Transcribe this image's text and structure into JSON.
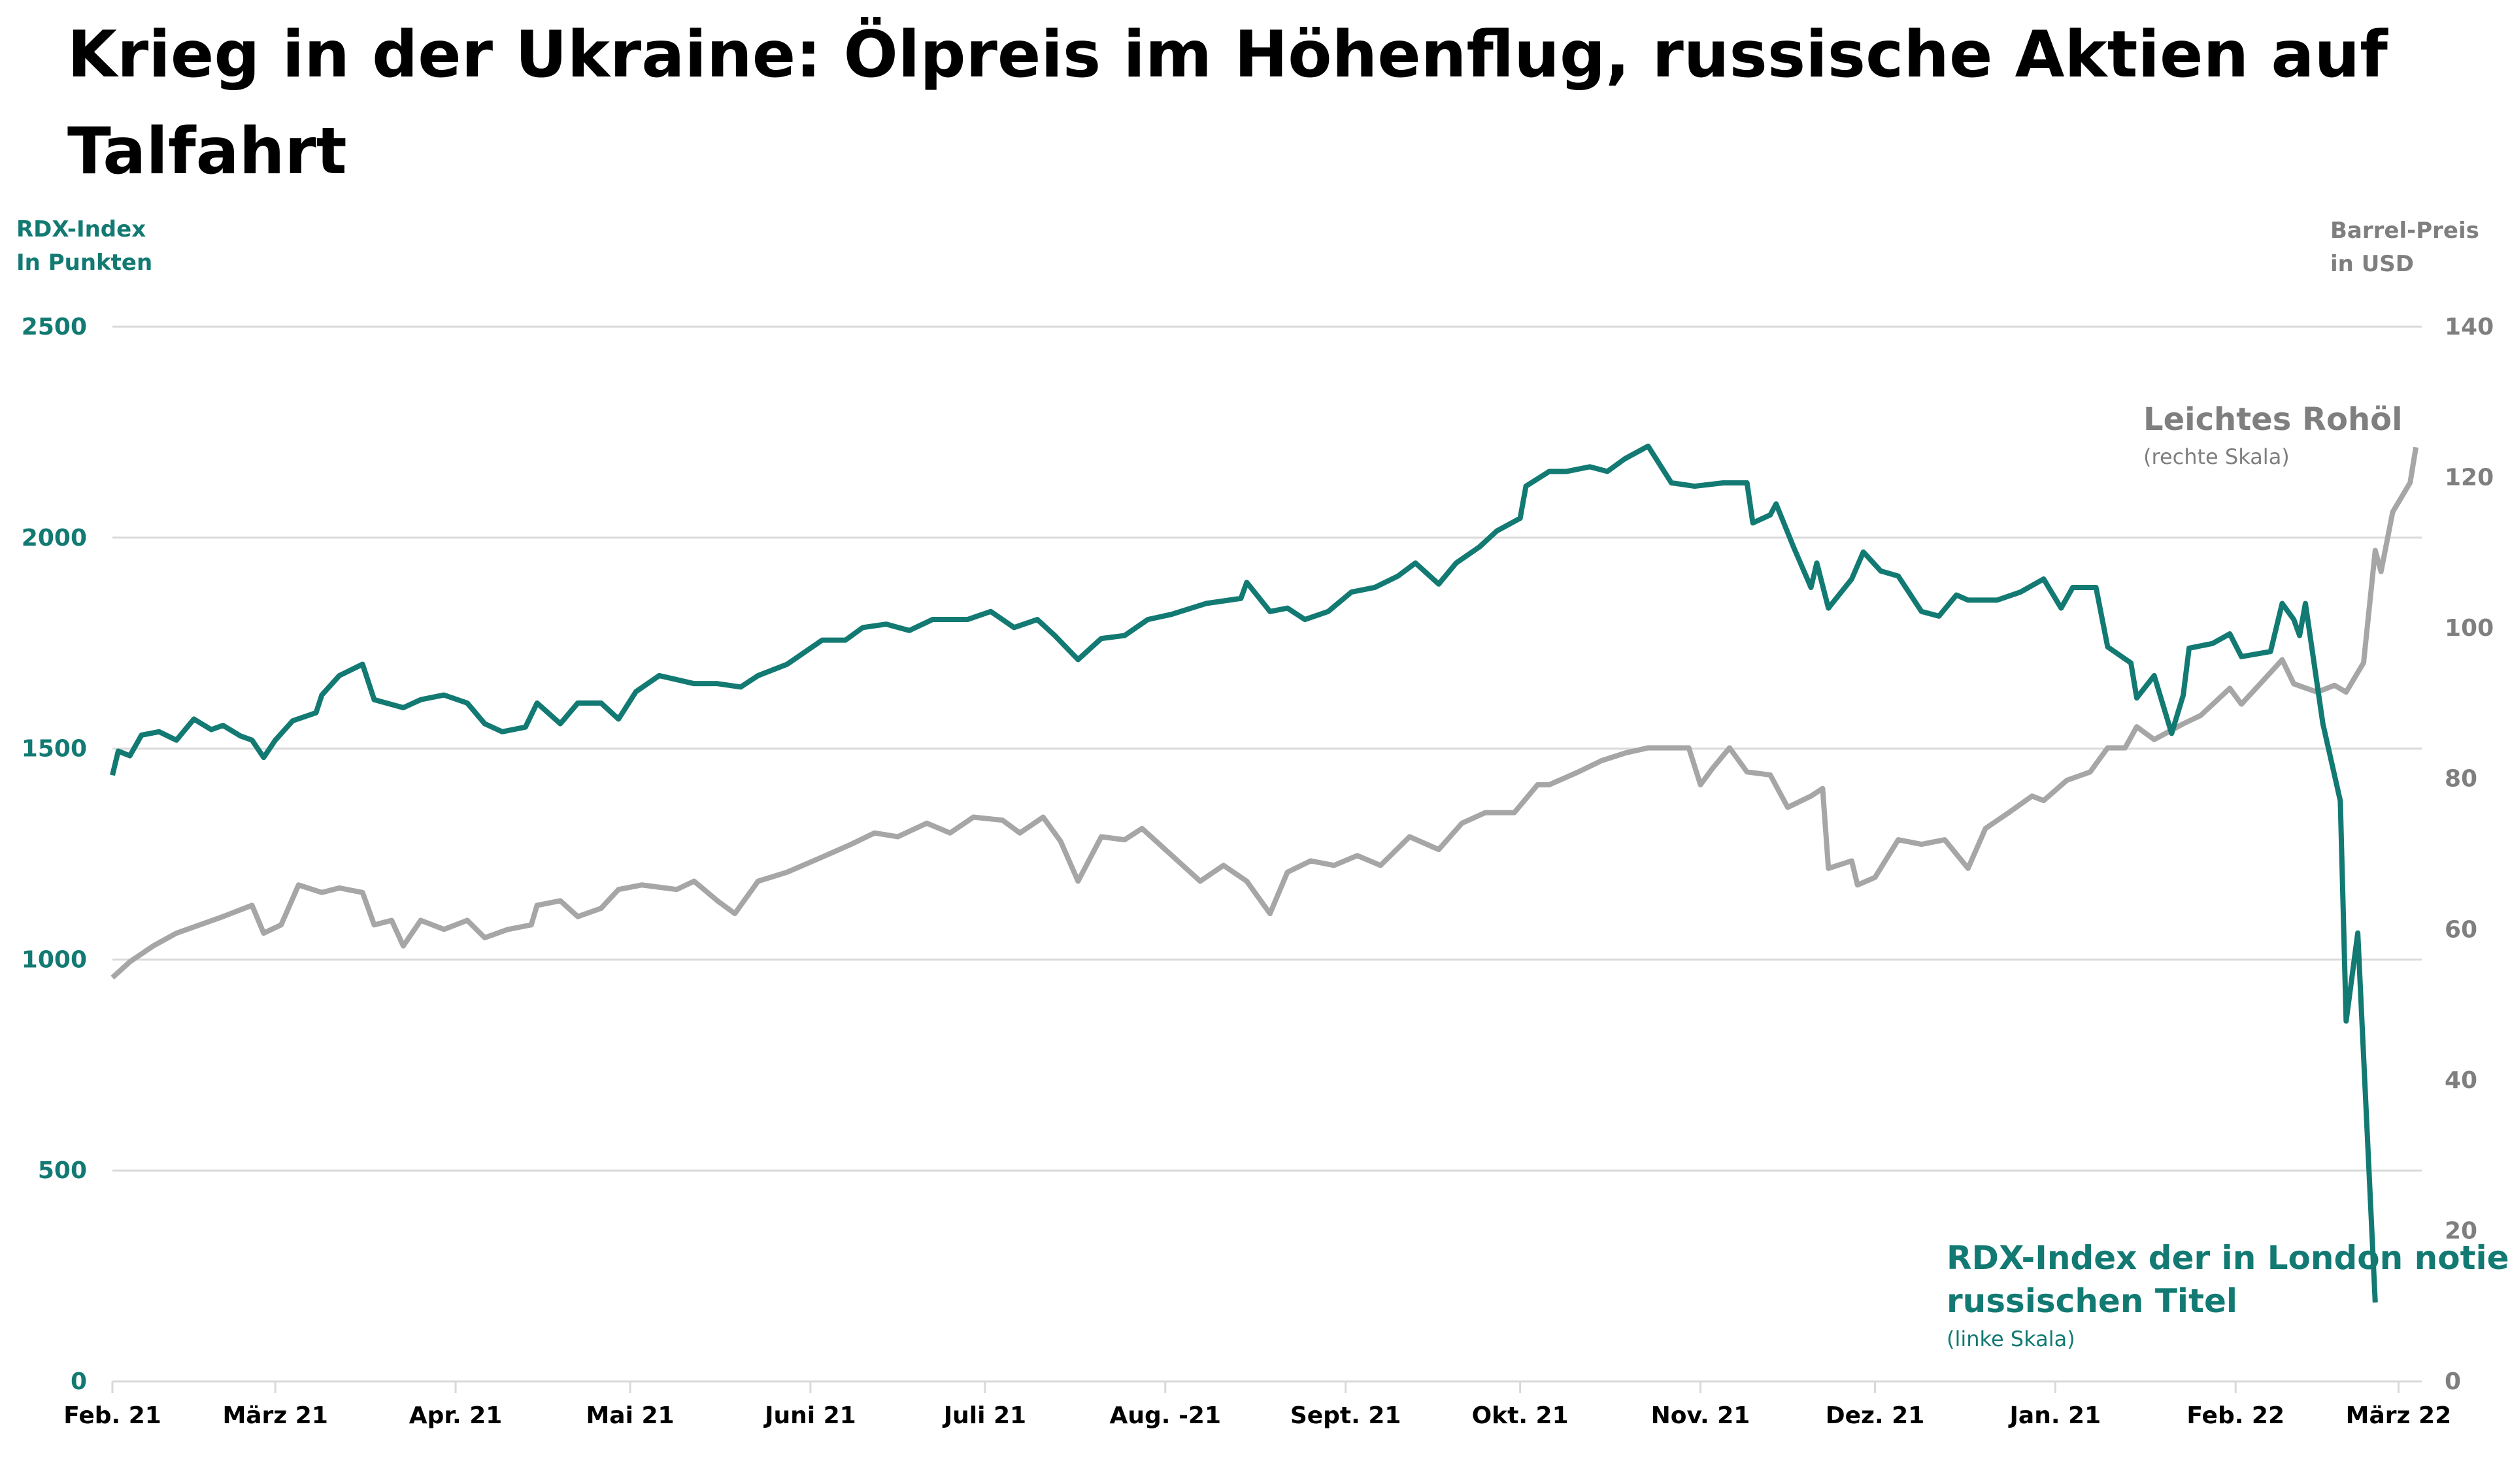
{
  "chart_data": {
    "type": "line",
    "title": "Krieg in der Ukraine: Ölpreis im Höhenflug, russische Aktien auf Talfahrt",
    "xlabel": "",
    "x_unit": "days since Feb. 2021 start",
    "xlim": [
      0,
      397
    ],
    "left_axis": {
      "label_lines": [
        "RDX-Index",
        "In Punkten"
      ],
      "ylim": [
        0,
        2500
      ],
      "ticks": [
        0,
        500,
        1000,
        1500,
        2000,
        2500
      ]
    },
    "right_axis": {
      "label_lines": [
        "Barrel-Preis",
        "in USD"
      ],
      "ylim": [
        0,
        140
      ],
      "ticks": [
        0,
        20,
        40,
        60,
        80,
        100,
        120,
        140
      ]
    },
    "x_ticks": [
      {
        "x": 0,
        "label": "Feb. 21"
      },
      {
        "x": 28,
        "label": "März 21"
      },
      {
        "x": 59,
        "label": "Apr.  21"
      },
      {
        "x": 89,
        "label": "Mai 21"
      },
      {
        "x": 120,
        "label": "Juni 21"
      },
      {
        "x": 150,
        "label": "Juli 21"
      },
      {
        "x": 181,
        "label": "Aug. -21"
      },
      {
        "x": 212,
        "label": "Sept. 21"
      },
      {
        "x": 242,
        "label": "Okt. 21"
      },
      {
        "x": 273,
        "label": "Nov. 21"
      },
      {
        "x": 303,
        "label": "Dez. 21"
      },
      {
        "x": 334,
        "label": "Jan. 21"
      },
      {
        "x": 365,
        "label": "Feb. 22"
      },
      {
        "x": 393,
        "label": "März 22"
      }
    ],
    "grid": true,
    "colors": {
      "rdx": "#127a72",
      "oil": "#a6a6a6",
      "oil_text": "#7f7f7f",
      "grid": "#d9d9d9"
    },
    "series": [
      {
        "name": "RDX-Index der in London notierten russischen Titel",
        "note": "(linke Skala)",
        "axis": "left",
        "points": [
          [
            0,
            1437
          ],
          [
            1,
            1494
          ],
          [
            3,
            1483
          ],
          [
            5,
            1532
          ],
          [
            8,
            1540
          ],
          [
            11,
            1520
          ],
          [
            14,
            1570
          ],
          [
            17,
            1545
          ],
          [
            19,
            1555
          ],
          [
            22,
            1530
          ],
          [
            24,
            1520
          ],
          [
            26,
            1479
          ],
          [
            28,
            1520
          ],
          [
            31,
            1566
          ],
          [
            35,
            1585
          ],
          [
            36,
            1627
          ],
          [
            39,
            1673
          ],
          [
            43,
            1700
          ],
          [
            45,
            1616
          ],
          [
            50,
            1597
          ],
          [
            53,
            1616
          ],
          [
            57,
            1627
          ],
          [
            61,
            1608
          ],
          [
            64,
            1559
          ],
          [
            67,
            1540
          ],
          [
            71,
            1551
          ],
          [
            73,
            1608
          ],
          [
            77,
            1559
          ],
          [
            80,
            1608
          ],
          [
            84,
            1608
          ],
          [
            87,
            1570
          ],
          [
            90,
            1635
          ],
          [
            94,
            1673
          ],
          [
            100,
            1654
          ],
          [
            104,
            1654
          ],
          [
            108,
            1646
          ],
          [
            111,
            1673
          ],
          [
            116,
            1700
          ],
          [
            122,
            1757
          ],
          [
            126,
            1757
          ],
          [
            129,
            1787
          ],
          [
            133,
            1795
          ],
          [
            137,
            1780
          ],
          [
            141,
            1806
          ],
          [
            147,
            1806
          ],
          [
            151,
            1825
          ],
          [
            155,
            1787
          ],
          [
            159,
            1806
          ],
          [
            162,
            1768
          ],
          [
            166,
            1711
          ],
          [
            170,
            1761
          ],
          [
            174,
            1768
          ],
          [
            178,
            1806
          ],
          [
            182,
            1818
          ],
          [
            188,
            1844
          ],
          [
            194,
            1856
          ],
          [
            195,
            1894
          ],
          [
            199,
            1825
          ],
          [
            202,
            1833
          ],
          [
            205,
            1806
          ],
          [
            209,
            1825
          ],
          [
            213,
            1871
          ],
          [
            217,
            1882
          ],
          [
            221,
            1909
          ],
          [
            224,
            1940
          ],
          [
            228,
            1890
          ],
          [
            231,
            1940
          ],
          [
            235,
            1978
          ],
          [
            238,
            2016
          ],
          [
            242,
            2046
          ],
          [
            243,
            2122
          ],
          [
            247,
            2157
          ],
          [
            250,
            2157
          ],
          [
            254,
            2168
          ],
          [
            257,
            2157
          ],
          [
            260,
            2187
          ],
          [
            264,
            2217
          ],
          [
            268,
            2130
          ],
          [
            272,
            2122
          ],
          [
            277,
            2130
          ],
          [
            281,
            2130
          ],
          [
            282,
            2035
          ],
          [
            285,
            2054
          ],
          [
            286,
            2080
          ],
          [
            289,
            1978
          ],
          [
            292,
            1882
          ],
          [
            293,
            1940
          ],
          [
            295,
            1833
          ],
          [
            299,
            1902
          ],
          [
            301,
            1966
          ],
          [
            304,
            1921
          ],
          [
            307,
            1909
          ],
          [
            311,
            1825
          ],
          [
            314,
            1814
          ],
          [
            317,
            1864
          ],
          [
            319,
            1852
          ],
          [
            324,
            1852
          ],
          [
            328,
            1871
          ],
          [
            332,
            1902
          ],
          [
            335,
            1833
          ],
          [
            337,
            1882
          ],
          [
            341,
            1882
          ],
          [
            343,
            1741
          ],
          [
            347,
            1703
          ],
          [
            348,
            1620
          ],
          [
            351,
            1673
          ],
          [
            354,
            1536
          ],
          [
            356,
            1627
          ],
          [
            357,
            1738
          ],
          [
            361,
            1749
          ],
          [
            364,
            1772
          ],
          [
            366,
            1718
          ],
          [
            371,
            1730
          ],
          [
            373,
            1844
          ],
          [
            375,
            1806
          ],
          [
            376,
            1768
          ],
          [
            377,
            1844
          ],
          [
            380,
            1559
          ],
          [
            383,
            1376
          ],
          [
            384,
            854
          ],
          [
            386,
            1063
          ],
          [
            389,
            187
          ]
        ]
      },
      {
        "name": "Leichtes Rohöl",
        "note": "(rechte Skala)",
        "axis": "right",
        "points": [
          [
            0,
            53.6
          ],
          [
            3,
            55.7
          ],
          [
            7,
            57.8
          ],
          [
            11,
            59.5
          ],
          [
            15,
            60.6
          ],
          [
            19,
            61.7
          ],
          [
            24,
            63.2
          ],
          [
            26,
            59.5
          ],
          [
            29,
            60.6
          ],
          [
            32,
            65.9
          ],
          [
            36,
            64.9
          ],
          [
            39,
            65.5
          ],
          [
            43,
            64.9
          ],
          [
            45,
            60.6
          ],
          [
            48,
            61.2
          ],
          [
            50,
            57.8
          ],
          [
            53,
            61.2
          ],
          [
            57,
            60.0
          ],
          [
            61,
            61.2
          ],
          [
            64,
            58.9
          ],
          [
            68,
            60.0
          ],
          [
            72,
            60.6
          ],
          [
            73,
            63.2
          ],
          [
            77,
            63.8
          ],
          [
            80,
            61.7
          ],
          [
            84,
            62.8
          ],
          [
            87,
            65.3
          ],
          [
            91,
            65.9
          ],
          [
            97,
            65.3
          ],
          [
            100,
            66.4
          ],
          [
            104,
            63.8
          ],
          [
            107,
            62.1
          ],
          [
            111,
            66.4
          ],
          [
            116,
            67.6
          ],
          [
            122,
            69.6
          ],
          [
            127,
            71.3
          ],
          [
            131,
            72.8
          ],
          [
            135,
            72.3
          ],
          [
            140,
            74.1
          ],
          [
            144,
            72.8
          ],
          [
            148,
            74.9
          ],
          [
            153,
            74.5
          ],
          [
            156,
            72.8
          ],
          [
            160,
            74.9
          ],
          [
            163,
            71.7
          ],
          [
            166,
            66.4
          ],
          [
            170,
            72.3
          ],
          [
            174,
            71.9
          ],
          [
            177,
            73.4
          ],
          [
            180,
            71.3
          ],
          [
            184,
            68.5
          ],
          [
            187,
            66.4
          ],
          [
            191,
            68.5
          ],
          [
            195,
            66.4
          ],
          [
            199,
            62.1
          ],
          [
            202,
            67.6
          ],
          [
            206,
            69.1
          ],
          [
            210,
            68.5
          ],
          [
            214,
            69.8
          ],
          [
            218,
            68.5
          ],
          [
            223,
            72.3
          ],
          [
            228,
            70.6
          ],
          [
            232,
            74.1
          ],
          [
            236,
            75.5
          ],
          [
            241,
            75.5
          ],
          [
            245,
            79.2
          ],
          [
            247,
            79.2
          ],
          [
            252,
            80.9
          ],
          [
            256,
            82.4
          ],
          [
            260,
            83.4
          ],
          [
            264,
            84.1
          ],
          [
            268,
            84.1
          ],
          [
            271,
            84.1
          ],
          [
            273,
            79.2
          ],
          [
            275,
            81.3
          ],
          [
            278,
            84.1
          ],
          [
            281,
            80.9
          ],
          [
            285,
            80.5
          ],
          [
            288,
            76.2
          ],
          [
            292,
            77.7
          ],
          [
            294,
            78.7
          ],
          [
            295,
            68.1
          ],
          [
            299,
            69.1
          ],
          [
            300,
            65.9
          ],
          [
            303,
            66.9
          ],
          [
            307,
            71.9
          ],
          [
            311,
            71.3
          ],
          [
            315,
            71.9
          ],
          [
            319,
            68.1
          ],
          [
            322,
            73.4
          ],
          [
            326,
            75.5
          ],
          [
            330,
            77.7
          ],
          [
            332,
            77.1
          ],
          [
            336,
            79.8
          ],
          [
            340,
            80.9
          ],
          [
            343,
            84.1
          ],
          [
            346,
            84.1
          ],
          [
            348,
            86.9
          ],
          [
            351,
            85.2
          ],
          [
            356,
            87.3
          ],
          [
            359,
            88.4
          ],
          [
            364,
            92.0
          ],
          [
            366,
            89.9
          ],
          [
            371,
            94.1
          ],
          [
            373,
            95.8
          ],
          [
            375,
            92.6
          ],
          [
            379,
            91.5
          ],
          [
            382,
            92.4
          ],
          [
            384,
            91.5
          ],
          [
            387,
            95.4
          ],
          [
            389,
            110.3
          ],
          [
            390,
            107.5
          ],
          [
            392,
            115.4
          ],
          [
            395,
            119.3
          ],
          [
            396,
            124.0
          ]
        ]
      }
    ]
  }
}
